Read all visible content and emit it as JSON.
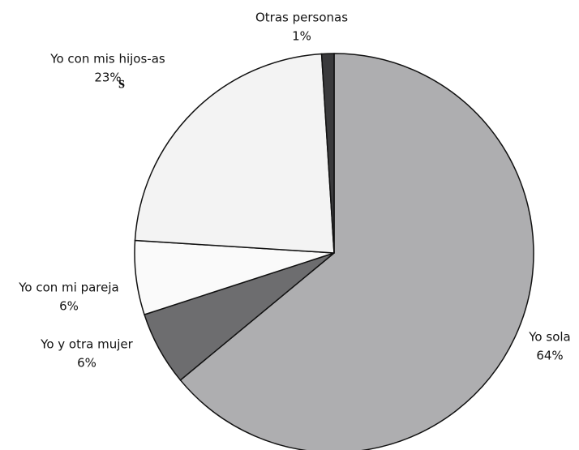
{
  "chart_data": {
    "type": "pie",
    "title": "s",
    "categories": [
      "Yo sola",
      "Yo y otra mujer",
      "Yo con mi pareja",
      "Yo con mis hijos-as",
      "Otras personas"
    ],
    "values": [
      64,
      6,
      6,
      23,
      1
    ],
    "value_labels": [
      "64%",
      "6%",
      "6%",
      "23%",
      "1%"
    ],
    "colors": [
      "#aeaeb0",
      "#6d6d6f",
      "#fafafa",
      "#f3f3f3",
      "#3a3a3c"
    ]
  }
}
